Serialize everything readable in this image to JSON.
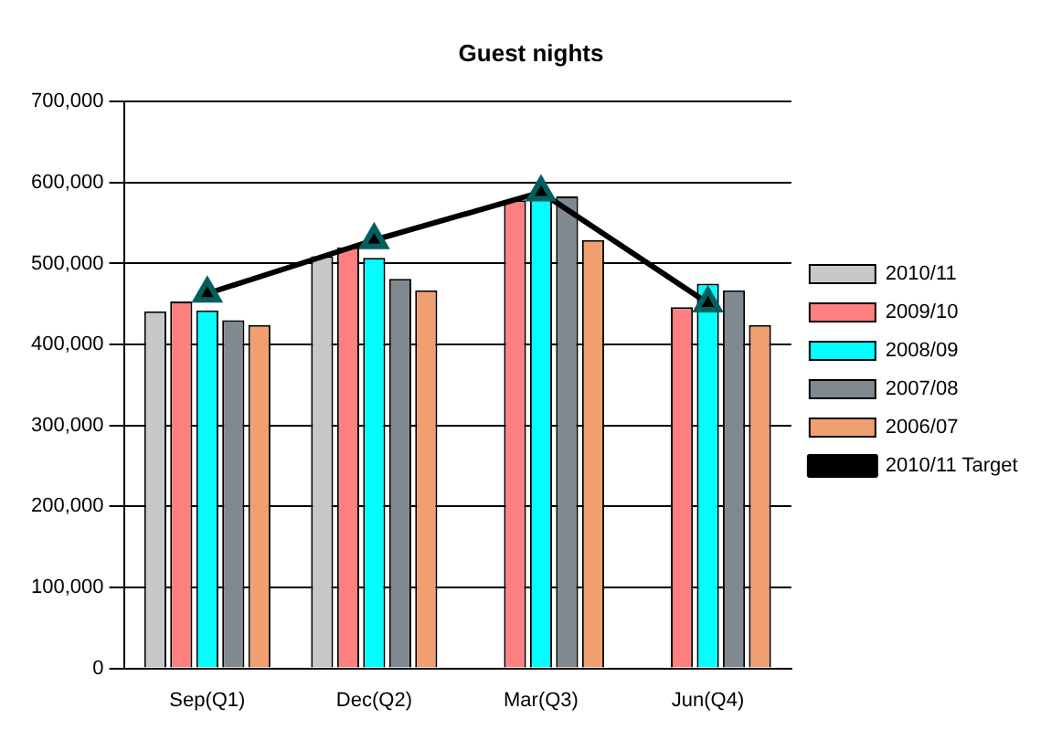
{
  "chart_data": {
    "type": "bar",
    "title": "Guest nights",
    "categories": [
      "Sep(Q1)",
      "Dec(Q2)",
      "Mar(Q3)",
      "Jun(Q4)"
    ],
    "series": [
      {
        "name": "2010/11",
        "color": "#c8c8c8",
        "values": [
          441000,
          509000,
          null,
          null
        ]
      },
      {
        "name": "2009/10",
        "color": "#ff8080",
        "values": [
          453000,
          520000,
          578000,
          446000
        ]
      },
      {
        "name": "2008/09",
        "color": "#00ffff",
        "values": [
          442000,
          507000,
          580000,
          475000
        ]
      },
      {
        "name": "2007/08",
        "color": "#808890",
        "values": [
          430000,
          481000,
          583000,
          467000
        ]
      },
      {
        "name": "2006/07",
        "color": "#f0a070",
        "values": [
          424000,
          467000,
          529000,
          424000
        ]
      },
      {
        "name": "2010/11 Target",
        "type": "line",
        "color": "#000000",
        "marker": "triangle",
        "values": [
          463000,
          529000,
          588000,
          451000
        ]
      }
    ],
    "ylim": [
      0,
      700000
    ],
    "yticks": [
      0,
      {
        "value": 100000,
        "label": "100,000"
      },
      {
        "value": 200000,
        "label": "200,000"
      },
      {
        "value": 300000,
        "label": "300,000"
      },
      {
        "value": 400000,
        "label": "400,000"
      },
      {
        "value": 500000,
        "label": "500,000"
      },
      {
        "value": 600000,
        "label": "600,000"
      },
      {
        "value": 700000,
        "label": "700,000"
      }
    ],
    "grid": "y",
    "legend": "right"
  }
}
